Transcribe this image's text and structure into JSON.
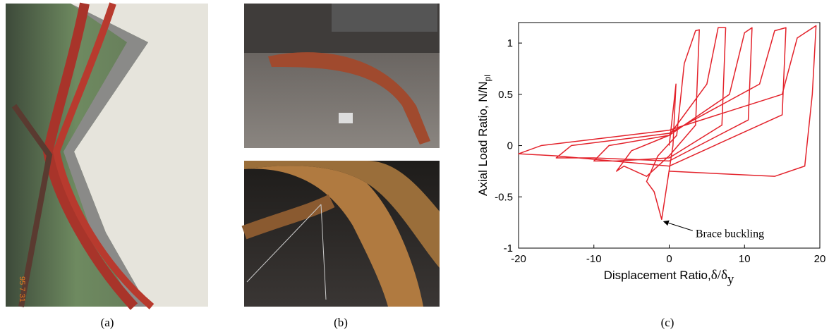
{
  "captions": [
    "(a)",
    "(b)",
    "(c)"
  ],
  "photo_a_stamp": "95 7 31",
  "chart_data": {
    "type": "line",
    "ylabel": "Axial Load Ratio, N/N",
    "ylabel_sub": "pl",
    "xlabel": "Displacement Ratio,",
    "xlabel_symbol": "δ/δ",
    "xlabel_sub": "y",
    "annotation": "Brace buckling",
    "xlim": [
      -20,
      20
    ],
    "ylim": [
      -1,
      1.2
    ],
    "xticks": [
      -20,
      -10,
      0,
      10,
      20
    ],
    "yticks": [
      -1,
      -0.5,
      0,
      0.5,
      1
    ],
    "grid": false,
    "x": [
      0,
      0.9,
      0.5,
      -1,
      -2,
      -3,
      -1.5,
      1,
      2,
      3.5,
      4,
      3.5,
      0,
      -3,
      -6,
      -7,
      -5,
      0,
      5,
      6.5,
      7.5,
      7,
      0,
      -7,
      -10,
      -8,
      0,
      8,
      10,
      11,
      10.5,
      0,
      -10,
      -15,
      -13,
      0,
      12,
      14,
      15.5,
      15,
      0,
      -15,
      -20,
      -17,
      0,
      15,
      17,
      19.5,
      19,
      18,
      14,
      0
    ],
    "series": [
      {
        "color": "#e3222b",
        "values": [
          0,
          0.6,
          0,
          -0.72,
          -0.45,
          -0.35,
          -0.1,
          0.1,
          0.8,
          1.12,
          1.13,
          0.2,
          -0.1,
          -0.3,
          -0.2,
          -0.25,
          -0.05,
          0.1,
          0.6,
          1.15,
          1.15,
          0.2,
          -0.12,
          -0.15,
          -0.15,
          0,
          0.1,
          0.5,
          1.1,
          1.15,
          0.25,
          -0.15,
          -0.12,
          -0.12,
          0,
          0.12,
          0.6,
          1.12,
          1.15,
          0.3,
          -0.2,
          -0.1,
          -0.08,
          0,
          0.15,
          0.5,
          1.05,
          1.17,
          0.5,
          -0.2,
          -0.3,
          -0.25
        ]
      }
    ]
  }
}
